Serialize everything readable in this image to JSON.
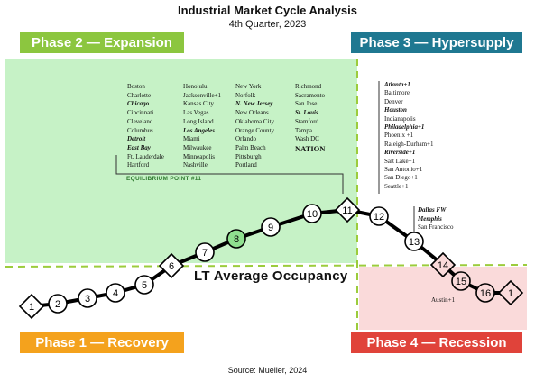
{
  "header": {
    "title": "Industrial Market Cycle Analysis",
    "subtitle": "4th Quarter, 2023"
  },
  "phases": {
    "phase2": "Phase 2 — Expansion",
    "phase3": "Phase 3 — Hypersupply",
    "phase1": "Phase 1 — Recovery",
    "phase4": "Phase 4 — Recession"
  },
  "colors": {
    "expansion": "#8cc63f",
    "hypersupply": "#1f7891",
    "recovery": "#f4a21d",
    "recession": "#e0433a",
    "highlight": "#8fe08f",
    "dash": "#9ccc3c"
  },
  "markets": {
    "col1": [
      "Boston",
      "Charlotte",
      "Chicago",
      "Cincinnati",
      "Cleveland",
      "Columbus",
      "Detroit",
      "East Bay",
      "Ft. Lauderdale",
      "Hartford"
    ],
    "col2": [
      "Honolulu",
      "Jacksonville+1",
      "Kansas City",
      "Las Vegas",
      "Long Island",
      "Los Angeles",
      "Miami",
      "Milwaukee",
      "Minneapolis",
      "Nashville"
    ],
    "col3": [
      "New York",
      "Norfolk",
      "N. New Jersey",
      "New Orleans",
      "Oklahoma City",
      "Orange County",
      "Orlando",
      "Palm Beach",
      "Pittsburgh",
      "Portland"
    ],
    "col4": [
      "Richmond",
      "Sacramento",
      "San Jose",
      "St. Louis",
      "Stamford",
      "Tampa",
      "Wash DC"
    ],
    "nation": "NATION",
    "point12": [
      "Atlanta+1",
      "Baltimore",
      "Denver",
      "Houston",
      "Indianapolis",
      "Philadelphia+1",
      "Phoenix +1",
      "Raleigh-Durham+1",
      "Riverside+1",
      "Salt Lake+1",
      "San Antonio+1",
      "San Diego+1",
      "Seattle+1"
    ],
    "point13": [
      "Dallas FW",
      "Memphis",
      "San Francisco"
    ],
    "point15": [
      "Austin+1"
    ]
  },
  "labels": {
    "equilibrium": "EQUILIBRIUM POINT #11",
    "lt_average": "LT Average  Occupancy",
    "source": "Source: Mueller, 2024"
  },
  "cycle_points": [
    "1",
    "2",
    "3",
    "4",
    "5",
    "6",
    "7",
    "8",
    "9",
    "10",
    "11",
    "12",
    "13",
    "14",
    "15",
    "16",
    "1"
  ]
}
